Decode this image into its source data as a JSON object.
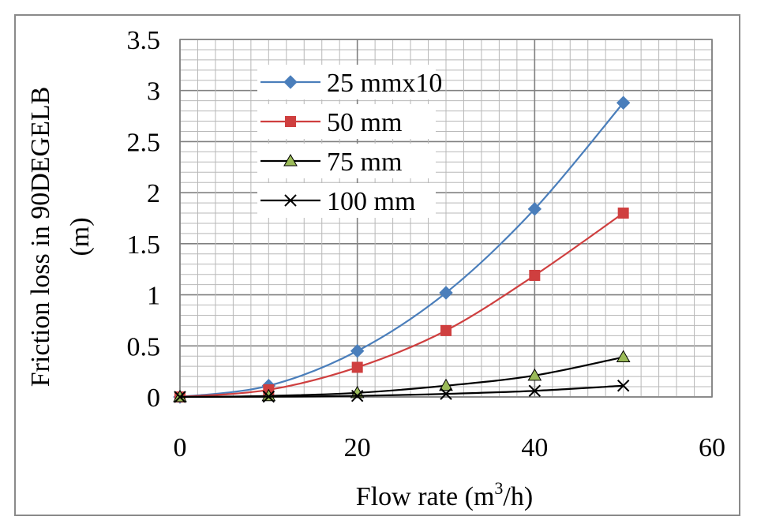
{
  "chart_data": {
    "type": "line",
    "title": "",
    "xlabel_main": "Flow rate (m",
    "xlabel_sup": "3",
    "xlabel_end": "/h)",
    "ylabel_line1": "Friction loss in 90DEGELB",
    "ylabel_line2": "(m)",
    "xlim": [
      0,
      60
    ],
    "ylim": [
      0,
      3.5
    ],
    "xticks": [
      "0",
      "20",
      "40",
      "60"
    ],
    "yticks": [
      "0",
      "0.5",
      "1",
      "1.5",
      "2",
      "2.5",
      "3",
      "3.5"
    ],
    "grid": true,
    "legend_position": "top-left",
    "x": [
      0,
      10,
      20,
      30,
      40,
      50
    ],
    "series": [
      {
        "name": "25 mmx10",
        "color": "#4a7ebb",
        "marker": "diamond",
        "values": [
          0,
          0.11,
          0.45,
          1.02,
          1.84,
          2.88
        ]
      },
      {
        "name": "50 mm",
        "color": "#cf3f3f",
        "marker": "square",
        "values": [
          0,
          0.07,
          0.29,
          0.65,
          1.19,
          1.8
        ]
      },
      {
        "name": "75 mm",
        "color": "#000000",
        "marker_fill": "#9bbb59",
        "marker": "triangle",
        "values": [
          0,
          0.01,
          0.04,
          0.11,
          0.21,
          0.39
        ]
      },
      {
        "name": "100 mm",
        "color": "#000000",
        "marker": "x",
        "values": [
          0,
          0.003,
          0.01,
          0.03,
          0.06,
          0.11
        ]
      }
    ]
  }
}
